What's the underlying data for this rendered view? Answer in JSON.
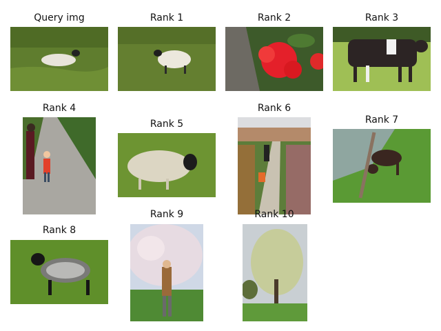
{
  "titles": {
    "query": "Query img",
    "r1": "Rank 1",
    "r2": "Rank 2",
    "r3": "Rank 3",
    "r4": "Rank 4",
    "r5": "Rank 5",
    "r6": "Rank 6",
    "r7": "Rank 7",
    "r8": "Rank 8",
    "r9": "Rank 9",
    "r10": "Rank 10"
  },
  "images": {
    "query": "sheep-lying-on-grass",
    "r1": "sheep-walking-on-grass",
    "r2": "red-geranium-flowers",
    "r3": "black-and-white-cow",
    "r4": "adult-and-child-on-path",
    "r5": "shaggy-sheep-on-grass",
    "r6": "people-in-flower-garden",
    "r7": "dog-by-water",
    "r8": "black-faced-lamb",
    "r9": "person-under-blossom-tree",
    "r10": "tree-in-park"
  }
}
